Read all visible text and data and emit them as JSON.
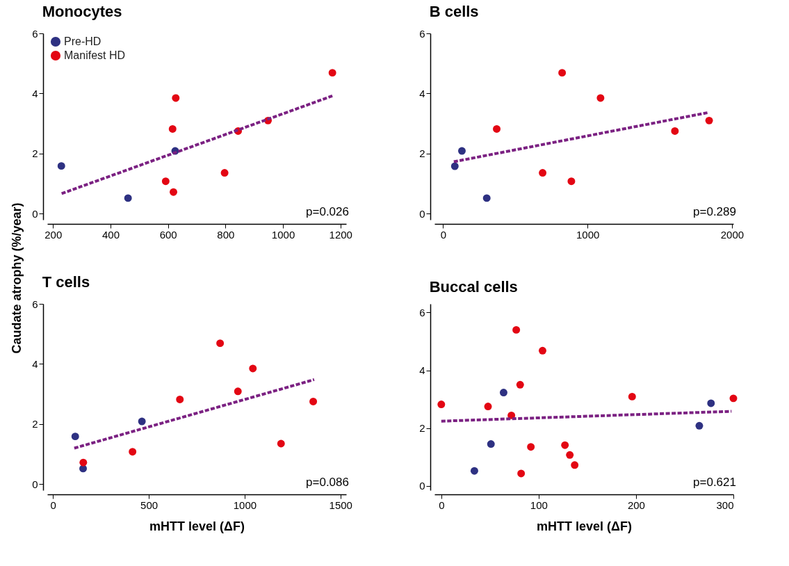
{
  "chart_data": [
    {
      "type": "scatter",
      "title": "Monocytes",
      "ylabel": "Caudate atrophy (%/year)",
      "xlim": [
        180,
        1220
      ],
      "xticks": [
        200,
        400,
        600,
        800,
        1000,
        1200
      ],
      "ylim": [
        -0.2,
        6
      ],
      "yticks": [
        0,
        2,
        4,
        6
      ],
      "marker": "circle",
      "legend": "top left",
      "annotations": [
        "p=0.026"
      ],
      "series": [
        {
          "name": "Pre-HD",
          "color": "#2e3182",
          "x": [
            229,
            461,
            625
          ],
          "values": [
            1.59,
            0.52,
            2.09
          ]
        },
        {
          "name": "Manifest HD",
          "color": "#e30613",
          "x": [
            627,
            616,
            592,
            619,
            797,
            844,
            948,
            1172
          ],
          "values": [
            3.85,
            2.82,
            1.08,
            0.72,
            1.36,
            2.75,
            3.1,
            4.69
          ]
        },
        {
          "type": "line",
          "marker": "none",
          "color": "#7b2182",
          "line_style": "dashed",
          "x": [
            230,
            1175
          ],
          "values": [
            0.67,
            3.93
          ]
        }
      ]
    },
    {
      "type": "scatter",
      "title": "B cells",
      "xlim": [
        -60,
        2010
      ],
      "xticks": [
        0,
        1000,
        2000
      ],
      "ylim": [
        -0.2,
        6
      ],
      "yticks": [
        0,
        2,
        4,
        6
      ],
      "marker": "circle",
      "annotations": [
        "p=0.289"
      ],
      "series": [
        {
          "color": "#2e3182",
          "x": [
            81,
            130,
            302
          ],
          "values": [
            1.58,
            2.09,
            0.52
          ]
        },
        {
          "color": "#e30613",
          "x": [
            371,
            824,
            1090,
            689,
            888,
            1605,
            1842
          ],
          "values": [
            2.82,
            4.69,
            3.85,
            1.36,
            1.08,
            2.75,
            3.1
          ]
        },
        {
          "type": "line",
          "marker": "none",
          "color": "#7b2182",
          "line_style": "dashed",
          "x": [
            74,
            1840
          ],
          "values": [
            1.73,
            3.37
          ]
        }
      ]
    },
    {
      "type": "scatter",
      "title": "T cells",
      "xlabel": "mHTT level (ΔF)",
      "xlim": [
        -30,
        1530
      ],
      "xticks": [
        0,
        500,
        1000,
        1500
      ],
      "ylim": [
        -0.2,
        6
      ],
      "yticks": [
        0,
        2,
        4,
        6
      ],
      "marker": "circle",
      "annotations": [
        "p=0.086"
      ],
      "series": [
        {
          "color": "#2e3182",
          "x": [
            116,
            157,
            464
          ],
          "values": [
            1.59,
            0.52,
            2.09
          ]
        },
        {
          "color": "#e30613",
          "x": [
            158,
            415,
            662,
            872,
            965,
            1043,
            1190,
            1358
          ],
          "values": [
            0.72,
            1.08,
            2.82,
            4.69,
            3.09,
            3.85,
            1.35,
            2.75
          ]
        },
        {
          "type": "line",
          "marker": "none",
          "color": "#7b2182",
          "line_style": "dashed",
          "x": [
            111,
            1363
          ],
          "values": [
            1.2,
            3.48
          ]
        }
      ]
    },
    {
      "type": "scatter",
      "title": "Buccal cells",
      "xlabel": "mHTT level (ΔF)",
      "xlim": [
        -7,
        300
      ],
      "xticks": [
        0,
        100,
        200,
        300
      ],
      "ylim": [
        -0.15,
        6.3
      ],
      "yticks": [
        0,
        2,
        4,
        6
      ],
      "marker": "circle",
      "annotations": [
        "p=0.621"
      ],
      "series": [
        {
          "color": "#2e3182",
          "x": [
            34,
            51,
            64,
            265,
            277
          ],
          "values": [
            0.52,
            1.45,
            3.23,
            2.08,
            2.86
          ]
        },
        {
          "color": "#e30613",
          "x": [
            0,
            48,
            72,
            77,
            81,
            82,
            92,
            104,
            127,
            132,
            137,
            196,
            300
          ],
          "values": [
            2.82,
            2.75,
            2.44,
            5.4,
            3.5,
            0.43,
            1.35,
            4.68,
            1.41,
            1.07,
            0.72,
            3.09,
            3.03
          ]
        },
        {
          "type": "line",
          "marker": "none",
          "color": "#7b2182",
          "line_style": "dashed",
          "x": [
            0,
            298
          ],
          "values": [
            2.24,
            2.58
          ]
        }
      ]
    }
  ]
}
